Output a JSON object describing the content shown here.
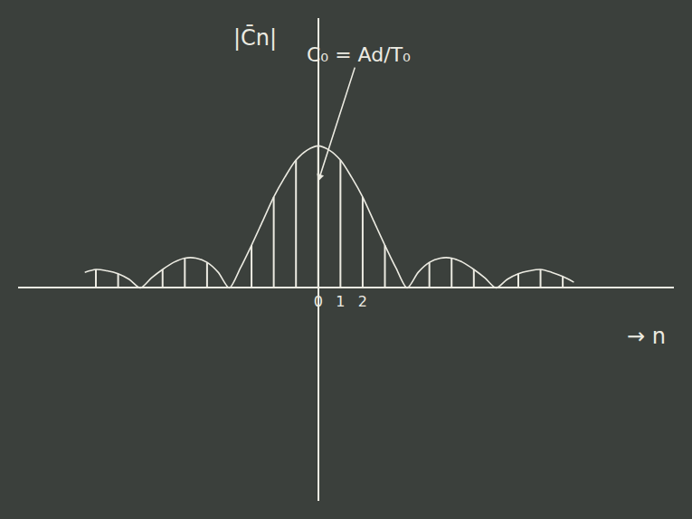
{
  "chart_data": {
    "type": "stem",
    "y_label": "|C̄n|",
    "x_label": "→ n",
    "x": [
      -10,
      -9,
      -8,
      -7,
      -6,
      -5,
      -4,
      -3,
      -2,
      -1,
      0,
      1,
      2,
      3,
      4,
      5,
      6,
      7,
      8,
      9,
      10,
      11
    ],
    "values": [
      0.13,
      0.1,
      0,
      0.13,
      0.21,
      0.18,
      0,
      0.3,
      0.64,
      0.9,
      1.0,
      0.9,
      0.64,
      0.3,
      0,
      0.18,
      0.21,
      0.13,
      0,
      0.1,
      0.13,
      0.08
    ],
    "envelope": {
      "x": [
        -10.5,
        -10,
        -9.5,
        -9,
        -8.5,
        -8,
        -7.5,
        -7,
        -6.5,
        -6,
        -5.5,
        -5,
        -4.5,
        -4,
        -3.5,
        -3,
        -2.5,
        -2,
        -1.5,
        -1,
        -0.5,
        0,
        0.5,
        1,
        1.5,
        2,
        2.5,
        3,
        3.5,
        4,
        4.5,
        5,
        5.5,
        6,
        6.5,
        7,
        7.5,
        8,
        8.5,
        9,
        9.5,
        10,
        10.5,
        11,
        11.5
      ],
      "values": [
        0.11,
        0.13,
        0.12,
        0.1,
        0.06,
        0,
        0.07,
        0.13,
        0.18,
        0.21,
        0.21,
        0.18,
        0.11,
        0,
        0.14,
        0.3,
        0.47,
        0.64,
        0.78,
        0.9,
        0.97,
        1.0,
        0.97,
        0.9,
        0.78,
        0.64,
        0.47,
        0.3,
        0.14,
        0,
        0.11,
        0.18,
        0.21,
        0.21,
        0.18,
        0.13,
        0.07,
        0,
        0.06,
        0.1,
        0.12,
        0.13,
        0.11,
        0.08,
        0.04
      ]
    },
    "annotations": [
      {
        "text": "C₀ = Ad/T₀",
        "x": 0,
        "y": 0.75
      }
    ],
    "color": "#ecebe2",
    "xlim": [
      -13.5,
      16
    ],
    "xticks": [
      0,
      1,
      2
    ],
    "ylim": [
      -1.5,
      1.9
    ],
    "yticks": [],
    "tick_labels": "x",
    "grid": false
  }
}
